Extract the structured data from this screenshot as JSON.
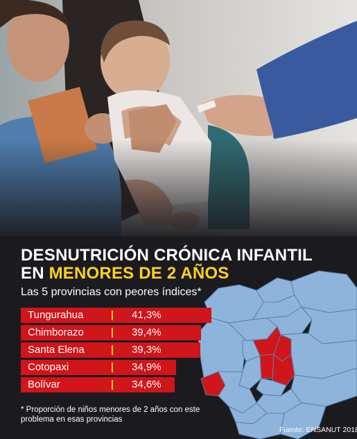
{
  "header": {
    "line1": "DESNUTRICIÓN CRÓNICA INFANTIL",
    "line2_prefix": "EN ",
    "line2_highlight": "MENORES DE 2 AÑOS"
  },
  "colors": {
    "bar": "#d0151b",
    "highlight": "#ffd21f",
    "map_base": "#8fb4dc",
    "map_highlight": "#d0151b"
  },
  "chart_data": {
    "type": "bar",
    "title": "Las 5 provincias con peores índices*",
    "categories": [
      "Tungurahua",
      "Chimborazo",
      "Santa Elena",
      "Cotopaxi",
      "Bolívar"
    ],
    "values": [
      41.3,
      39.4,
      39.3,
      34.9,
      34.6
    ],
    "value_labels": [
      "41,3%",
      "39,4%",
      "39,3%",
      "34,9%",
      "34,6%"
    ],
    "unit": "%",
    "orientation": "horizontal",
    "legend": "none"
  },
  "map": {
    "highlighted_provinces": [
      "Tungurahua",
      "Chimborazo",
      "Santa Elena",
      "Cotopaxi",
      "Bolívar"
    ]
  },
  "footnote": "* Proporción de niños menores de 2 años con este problema en esas provincias",
  "source": "Fuente: ENSANUT 2018"
}
